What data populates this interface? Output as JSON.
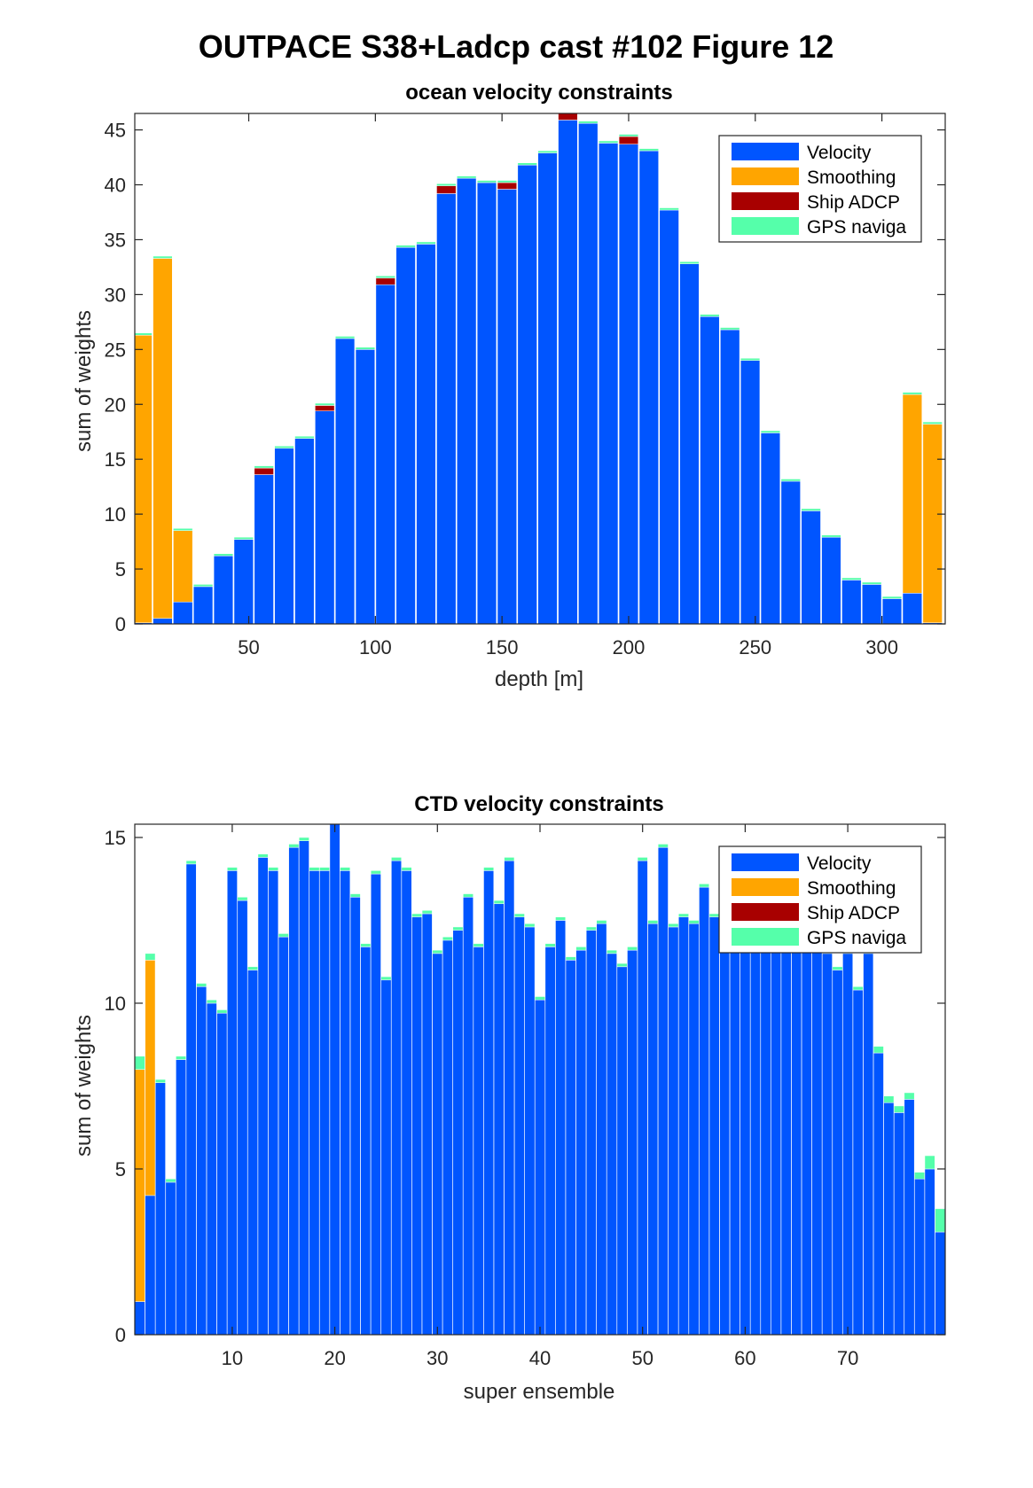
{
  "figure_title": "OUTPACE S38+Ladcp cast #102  Figure 12",
  "colors": {
    "velocity": "#0055ff",
    "smoothing": "#ffa500",
    "ship_adcp": "#a80000",
    "gps": "#55ffaa",
    "axis": "#262626"
  },
  "chart_data": [
    {
      "type": "bar",
      "stacked": true,
      "title": "ocean velocity constraints",
      "xlabel": "depth [m]",
      "ylabel": "sum of weights",
      "xlim": [
        5,
        325
      ],
      "ylim": [
        0,
        46.5
      ],
      "xticks": [
        50,
        100,
        150,
        200,
        250,
        300
      ],
      "yticks": [
        0,
        5,
        10,
        15,
        20,
        25,
        30,
        35,
        40,
        45
      ],
      "bar_width": 7.6,
      "legend": [
        "Velocity",
        "Smoothing",
        "Ship ADCP",
        "GPS naviga"
      ],
      "legend_position": "top-right",
      "grid": false,
      "x": [
        8,
        16,
        24,
        32,
        40,
        48,
        56,
        64,
        72,
        80,
        88,
        96,
        104,
        112,
        120,
        128,
        136,
        144,
        152,
        160,
        168,
        176,
        184,
        192,
        200,
        208,
        216,
        224,
        232,
        240,
        248,
        256,
        264,
        272,
        280,
        288,
        296,
        304,
        312,
        320
      ],
      "series": [
        {
          "name": "Velocity",
          "values": [
            0.1,
            0.5,
            2.0,
            3.4,
            6.2,
            7.7,
            13.6,
            16.0,
            16.9,
            19.4,
            26.0,
            25.0,
            30.9,
            34.3,
            34.6,
            39.2,
            40.6,
            40.2,
            39.6,
            41.8,
            42.9,
            45.9,
            45.6,
            43.8,
            43.7,
            43.1,
            37.7,
            32.8,
            28.0,
            26.8,
            24.0,
            17.4,
            13.0,
            10.3,
            7.9,
            4.0,
            3.6,
            2.3,
            2.8,
            0.1
          ]
        },
        {
          "name": "Smoothing",
          "values": [
            26.2,
            32.8,
            6.5,
            0,
            0,
            0,
            0,
            0,
            0,
            0,
            0,
            0,
            0,
            0,
            0,
            0,
            0,
            0,
            0,
            0,
            0,
            0,
            0,
            0,
            0,
            0,
            0,
            0,
            0,
            0,
            0,
            0,
            0,
            0,
            0,
            0,
            0,
            0,
            18.1,
            18.1
          ]
        },
        {
          "name": "Ship ADCP",
          "values": [
            0,
            0,
            0,
            0,
            0,
            0,
            0.6,
            0,
            0,
            0.5,
            0,
            0,
            0.6,
            0,
            0,
            0.7,
            0,
            0,
            0.6,
            0,
            0,
            0.6,
            0,
            0,
            0.7,
            0,
            0,
            0,
            0,
            0,
            0,
            0,
            0,
            0,
            0,
            0,
            0,
            0,
            0,
            0
          ]
        },
        {
          "name": "GPS naviga",
          "values": [
            0.2,
            0.2,
            0.2,
            0.2,
            0.2,
            0.2,
            0.2,
            0.2,
            0.2,
            0.2,
            0.2,
            0.2,
            0.2,
            0.2,
            0.2,
            0.2,
            0.2,
            0.2,
            0.2,
            0.2,
            0.2,
            0.2,
            0.2,
            0.2,
            0.2,
            0.2,
            0.2,
            0.2,
            0.2,
            0.2,
            0.2,
            0.2,
            0.2,
            0.2,
            0.2,
            0.2,
            0.2,
            0.2,
            0.2,
            0.2
          ]
        }
      ]
    },
    {
      "type": "bar",
      "stacked": true,
      "title": "CTD velocity constraints",
      "xlabel": "super ensemble",
      "ylabel": "sum of weights",
      "xlim": [
        0.5,
        79.5
      ],
      "ylim": [
        0,
        15.4
      ],
      "xticks": [
        10,
        20,
        30,
        40,
        50,
        60,
        70
      ],
      "yticks": [
        0,
        5,
        10,
        15
      ],
      "bar_width": 0.98,
      "legend": [
        "Velocity",
        "Smoothing",
        "Ship ADCP",
        "GPS naviga"
      ],
      "legend_position": "top-right",
      "grid": false,
      "x": [
        1,
        2,
        3,
        4,
        5,
        6,
        7,
        8,
        9,
        10,
        11,
        12,
        13,
        14,
        15,
        16,
        17,
        18,
        19,
        20,
        21,
        22,
        23,
        24,
        25,
        26,
        27,
        28,
        29,
        30,
        31,
        32,
        33,
        34,
        35,
        36,
        37,
        38,
        39,
        40,
        41,
        42,
        43,
        44,
        45,
        46,
        47,
        48,
        49,
        50,
        51,
        52,
        53,
        54,
        55,
        56,
        57,
        58,
        59,
        60,
        61,
        62,
        63,
        64,
        65,
        66,
        67,
        68,
        69,
        70,
        71,
        72,
        73,
        74,
        75,
        76,
        77,
        78,
        79
      ],
      "series": [
        {
          "name": "Velocity",
          "values": [
            1.0,
            4.2,
            7.6,
            4.6,
            8.3,
            14.2,
            10.5,
            10.0,
            9.7,
            14.0,
            13.1,
            11.0,
            14.4,
            14.0,
            12.0,
            14.7,
            14.9,
            14.0,
            14.0,
            15.4,
            14.0,
            13.2,
            11.7,
            13.9,
            10.7,
            14.3,
            14.0,
            12.6,
            12.7,
            11.5,
            11.9,
            12.2,
            13.2,
            11.7,
            14.0,
            13.0,
            14.3,
            12.6,
            12.3,
            10.1,
            11.7,
            12.5,
            11.3,
            11.6,
            12.2,
            12.4,
            11.5,
            11.1,
            11.6,
            14.3,
            12.4,
            14.7,
            12.3,
            12.6,
            12.4,
            13.5,
            12.6,
            14.0,
            12.5,
            12.6,
            12.6,
            12.6,
            13.0,
            14.0,
            12.6,
            12.3,
            13.0,
            11.5,
            11.0,
            11.5,
            10.4,
            11.5,
            8.5,
            7.0,
            6.7,
            7.1,
            4.7,
            5.0,
            3.1
          ]
        },
        {
          "name": "Smoothing",
          "values": [
            7.0,
            7.1,
            0,
            0,
            0,
            0,
            0,
            0,
            0,
            0,
            0,
            0,
            0,
            0,
            0,
            0,
            0,
            0,
            0,
            0,
            0,
            0,
            0,
            0,
            0,
            0,
            0,
            0,
            0,
            0,
            0,
            0,
            0,
            0,
            0,
            0,
            0,
            0,
            0,
            0,
            0,
            0,
            0,
            0,
            0,
            0,
            0,
            0,
            0,
            0,
            0,
            0,
            0,
            0,
            0,
            0,
            0,
            0,
            0,
            0,
            0,
            0,
            0,
            0,
            0,
            0,
            0,
            0,
            0,
            0,
            0,
            0,
            0,
            0,
            0,
            0,
            0,
            0,
            0
          ]
        },
        {
          "name": "Ship ADCP",
          "values": [
            0,
            0,
            0,
            0,
            0,
            0,
            0,
            0,
            0,
            0,
            0,
            0,
            0,
            0,
            0,
            0,
            0,
            0,
            0,
            0,
            0,
            0,
            0,
            0,
            0,
            0,
            0,
            0,
            0,
            0,
            0,
            0,
            0,
            0,
            0,
            0,
            0,
            0,
            0,
            0,
            0,
            0,
            0,
            0,
            0,
            0,
            0,
            0,
            0,
            0,
            0,
            0,
            0,
            0,
            0,
            0,
            0,
            0,
            0,
            0,
            0,
            0,
            0,
            0,
            0,
            0,
            0,
            0,
            0,
            0,
            0,
            0,
            0,
            0,
            0,
            0,
            0,
            0,
            0
          ]
        },
        {
          "name": "GPS naviga",
          "values": [
            0.4,
            0.2,
            0.1,
            0.1,
            0.1,
            0.1,
            0.1,
            0.1,
            0.1,
            0.1,
            0.1,
            0.1,
            0.1,
            0.1,
            0.1,
            0.1,
            0.1,
            0.1,
            0.1,
            0.1,
            0.1,
            0.1,
            0.1,
            0.1,
            0.1,
            0.1,
            0.1,
            0.1,
            0.1,
            0.1,
            0.1,
            0.1,
            0.1,
            0.1,
            0.1,
            0.1,
            0.1,
            0.1,
            0.1,
            0.1,
            0.1,
            0.1,
            0.1,
            0.1,
            0.1,
            0.1,
            0.1,
            0.1,
            0.1,
            0.1,
            0.1,
            0.1,
            0.1,
            0.1,
            0.1,
            0.1,
            0.1,
            0.1,
            0.1,
            0.1,
            0.1,
            0.1,
            0.1,
            0.1,
            0.1,
            0.1,
            0.1,
            0.1,
            0.1,
            0.1,
            0.1,
            0.1,
            0.2,
            0.2,
            0.2,
            0.2,
            0.2,
            0.4,
            0.7
          ]
        }
      ]
    }
  ]
}
